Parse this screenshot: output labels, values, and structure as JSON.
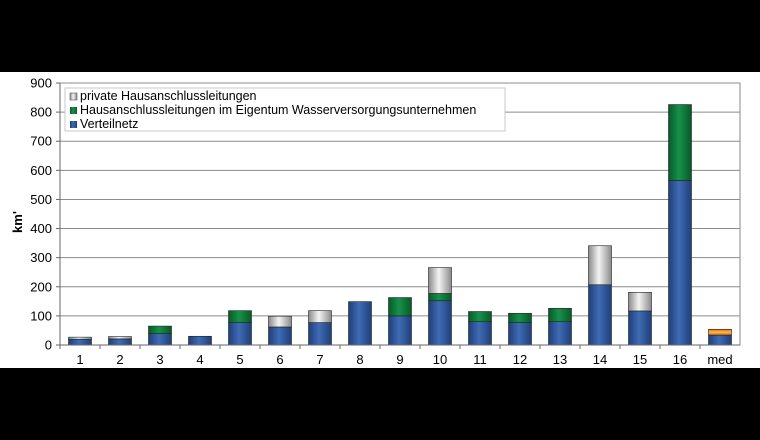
{
  "chart_data": {
    "type": "bar",
    "stacked": true,
    "categories": [
      "1",
      "2",
      "3",
      "4",
      "5",
      "6",
      "7",
      "8",
      "9",
      "10",
      "11",
      "12",
      "13",
      "14",
      "15",
      "16",
      "med"
    ],
    "series": [
      {
        "name": "Verteilnetz",
        "color": "#2f5597",
        "values": [
          20,
          21,
          39,
          30,
          77,
          62,
          77,
          149,
          100,
          152,
          80,
          77,
          80,
          207,
          117,
          565,
          34
        ]
      },
      {
        "name": "Hausanschlussleitungen im Eigentum Wasserversorgungsunternehmen",
        "color": "#0f7a3a",
        "values": [
          0,
          0,
          26,
          0,
          41,
          0,
          0,
          0,
          63,
          25,
          35,
          32,
          46,
          0,
          0,
          261,
          0
        ]
      },
      {
        "name": "private Hausanschlussleitungen",
        "color": "#cfcfcf",
        "values": [
          7,
          8,
          0,
          0,
          0,
          37,
          41,
          0,
          0,
          89,
          0,
          0,
          0,
          134,
          64,
          0,
          20
        ]
      }
    ],
    "special_colors": {
      "med_top": "#f08a24"
    },
    "ylabel": "km'",
    "xlabel": "",
    "ylim": [
      0,
      900
    ],
    "yticks": [
      0,
      100,
      200,
      300,
      400,
      500,
      600,
      700,
      800,
      900
    ],
    "grid": true,
    "legend": "top-left"
  }
}
